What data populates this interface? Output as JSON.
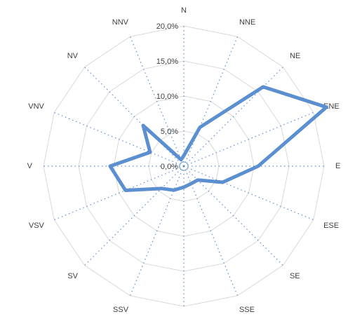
{
  "chart_data": {
    "type": "radar",
    "categories": [
      "N",
      "NNE",
      "NE",
      "ENE",
      "E",
      "ESE",
      "SE",
      "SSE",
      null,
      "SSV",
      "SV",
      "VSV",
      "V",
      "VNV",
      "NV",
      "NNV"
    ],
    "values": [
      1.5,
      6,
      16,
      22,
      10.6,
      6,
      2.8,
      2.7,
      3,
      3.7,
      4.5,
      9,
      10.5,
      5.2,
      8.2,
      1
    ],
    "color": "#5b8fd0",
    "ylim": [
      0,
      20
    ],
    "yticks": [
      {
        "value": 0,
        "label": "0,0%"
      },
      {
        "value": 5,
        "label": "5,0%"
      },
      {
        "value": 10,
        "label": "10,0%"
      },
      {
        "value": 15,
        "label": "15,0%"
      },
      {
        "value": 20,
        "label": "20,0%"
      }
    ],
    "grid": true
  }
}
